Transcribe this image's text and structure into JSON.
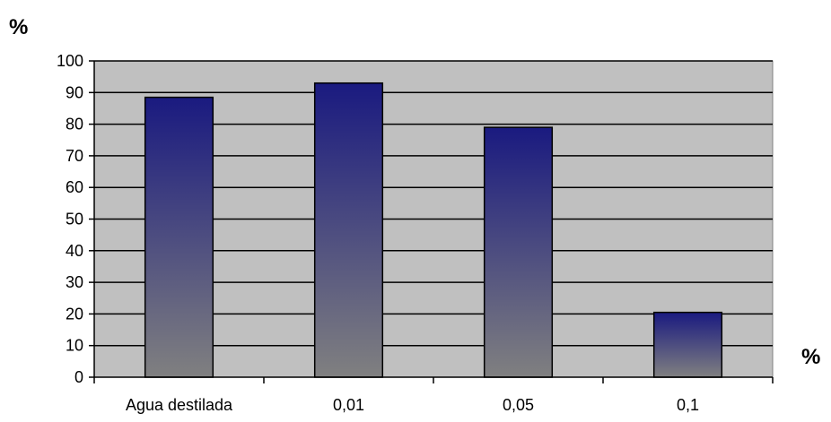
{
  "chart_data": {
    "type": "bar",
    "title": "",
    "ylabel": "%",
    "xlabel": "%",
    "categories": [
      "Agua destilada",
      "0,01",
      "0,05",
      "0,1"
    ],
    "series": [
      {
        "values": [
          88.5,
          93,
          79,
          20.5
        ]
      }
    ],
    "ylim": [
      0,
      100
    ],
    "yticks": [
      "0",
      "10",
      "20",
      "30",
      "40",
      "50",
      "60",
      "70",
      "80",
      "90",
      "100"
    ],
    "grid": true,
    "legend": "none",
    "colors": {
      "plot_background": "#c0c0c0",
      "bar_top": "#1a1a80",
      "bar_bottom": "#808080",
      "gridline": "#000000"
    }
  }
}
